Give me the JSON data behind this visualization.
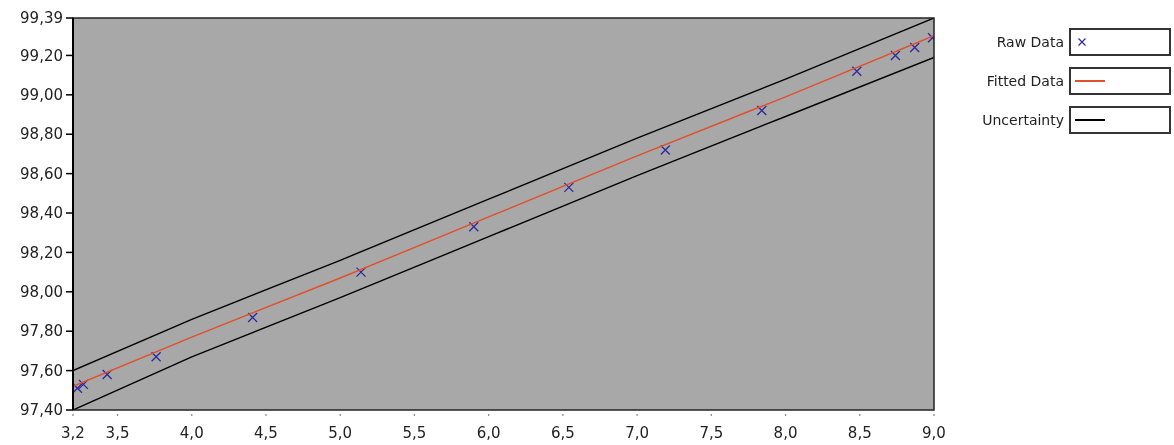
{
  "chart_data": {
    "type": "line",
    "xlim": [
      3.2,
      9.0
    ],
    "ylim": [
      97.4,
      99.39
    ],
    "xticks": [
      {
        "value": 3.2,
        "label": "3,2"
      },
      {
        "value": 3.5,
        "label": "3,5"
      },
      {
        "value": 4.0,
        "label": "4,0"
      },
      {
        "value": 4.5,
        "label": "4,5"
      },
      {
        "value": 5.0,
        "label": "5,0"
      },
      {
        "value": 5.5,
        "label": "5,5"
      },
      {
        "value": 6.0,
        "label": "6,0"
      },
      {
        "value": 6.5,
        "label": "6,5"
      },
      {
        "value": 7.0,
        "label": "7,0"
      },
      {
        "value": 7.5,
        "label": "7,5"
      },
      {
        "value": 8.0,
        "label": "8,0"
      },
      {
        "value": 8.5,
        "label": "8,5"
      },
      {
        "value": 9.0,
        "label": "9,0"
      }
    ],
    "yticks": [
      {
        "value": 97.4,
        "label": "97,40"
      },
      {
        "value": 97.6,
        "label": "97,60"
      },
      {
        "value": 97.8,
        "label": "97,80"
      },
      {
        "value": 98.0,
        "label": "98,00"
      },
      {
        "value": 98.2,
        "label": "98,20"
      },
      {
        "value": 98.4,
        "label": "98,40"
      },
      {
        "value": 98.6,
        "label": "98,60"
      },
      {
        "value": 98.8,
        "label": "98,80"
      },
      {
        "value": 99.0,
        "label": "99,00"
      },
      {
        "value": 99.2,
        "label": "99,20"
      },
      {
        "value": 99.39,
        "label": "99,39"
      }
    ],
    "legend": "right",
    "series": [
      {
        "name": "Raw Data",
        "type": "scatter",
        "marker": "cross",
        "color": "#2a2aa0",
        "x": [
          3.23,
          3.27,
          3.43,
          3.76,
          4.41,
          5.14,
          5.9,
          6.54,
          7.19,
          7.84,
          8.48,
          8.74,
          8.87,
          8.99
        ],
        "values": [
          97.51,
          97.53,
          97.58,
          97.67,
          97.87,
          98.1,
          98.33,
          98.53,
          98.72,
          98.92,
          99.12,
          99.2,
          99.24,
          99.29
        ]
      },
      {
        "name": "Fitted Data",
        "type": "line",
        "color": "#e0502a",
        "x": [
          3.2,
          4.0,
          5.0,
          6.0,
          7.0,
          8.0,
          9.0
        ],
        "values": [
          97.52,
          97.77,
          98.07,
          98.38,
          98.69,
          98.99,
          99.3
        ]
      },
      {
        "name": "Uncertainty",
        "type": "line",
        "color": "#000000",
        "x": [
          3.2,
          4.0,
          5.0,
          6.0,
          7.0,
          8.0,
          9.0
        ],
        "values": [
          97.6,
          97.86,
          98.16,
          98.47,
          98.78,
          99.08,
          99.39
        ]
      },
      {
        "type": "line",
        "color": "#000000",
        "x": [
          3.2,
          4.0,
          5.0,
          6.0,
          7.0,
          8.0,
          9.0
        ],
        "values": [
          97.4,
          97.67,
          97.97,
          98.28,
          98.59,
          98.89,
          99.19
        ]
      }
    ]
  }
}
